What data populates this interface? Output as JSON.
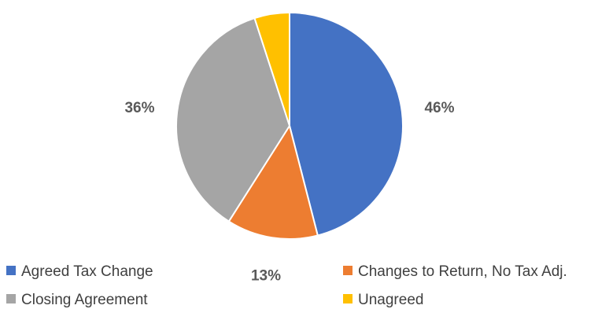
{
  "chart_data": {
    "type": "pie",
    "title": "",
    "slices": [
      {
        "label": "Agreed Tax Change",
        "value": 46,
        "display": "46%",
        "color": "#4472C4"
      },
      {
        "label": "Changes to Return, No Tax Adj.",
        "value": 13,
        "display": "13%",
        "color": "#ED7D31"
      },
      {
        "label": "Closing Agreement",
        "value": 36,
        "display": "36%",
        "color": "#A5A5A5"
      },
      {
        "label": "Unagreed",
        "value": 5,
        "display": "5%",
        "color": "#FFC000"
      }
    ],
    "legend_position": "bottom",
    "legend_order": [
      0,
      1,
      2,
      3
    ],
    "start_angle_deg": 0,
    "direction": "clockwise"
  }
}
